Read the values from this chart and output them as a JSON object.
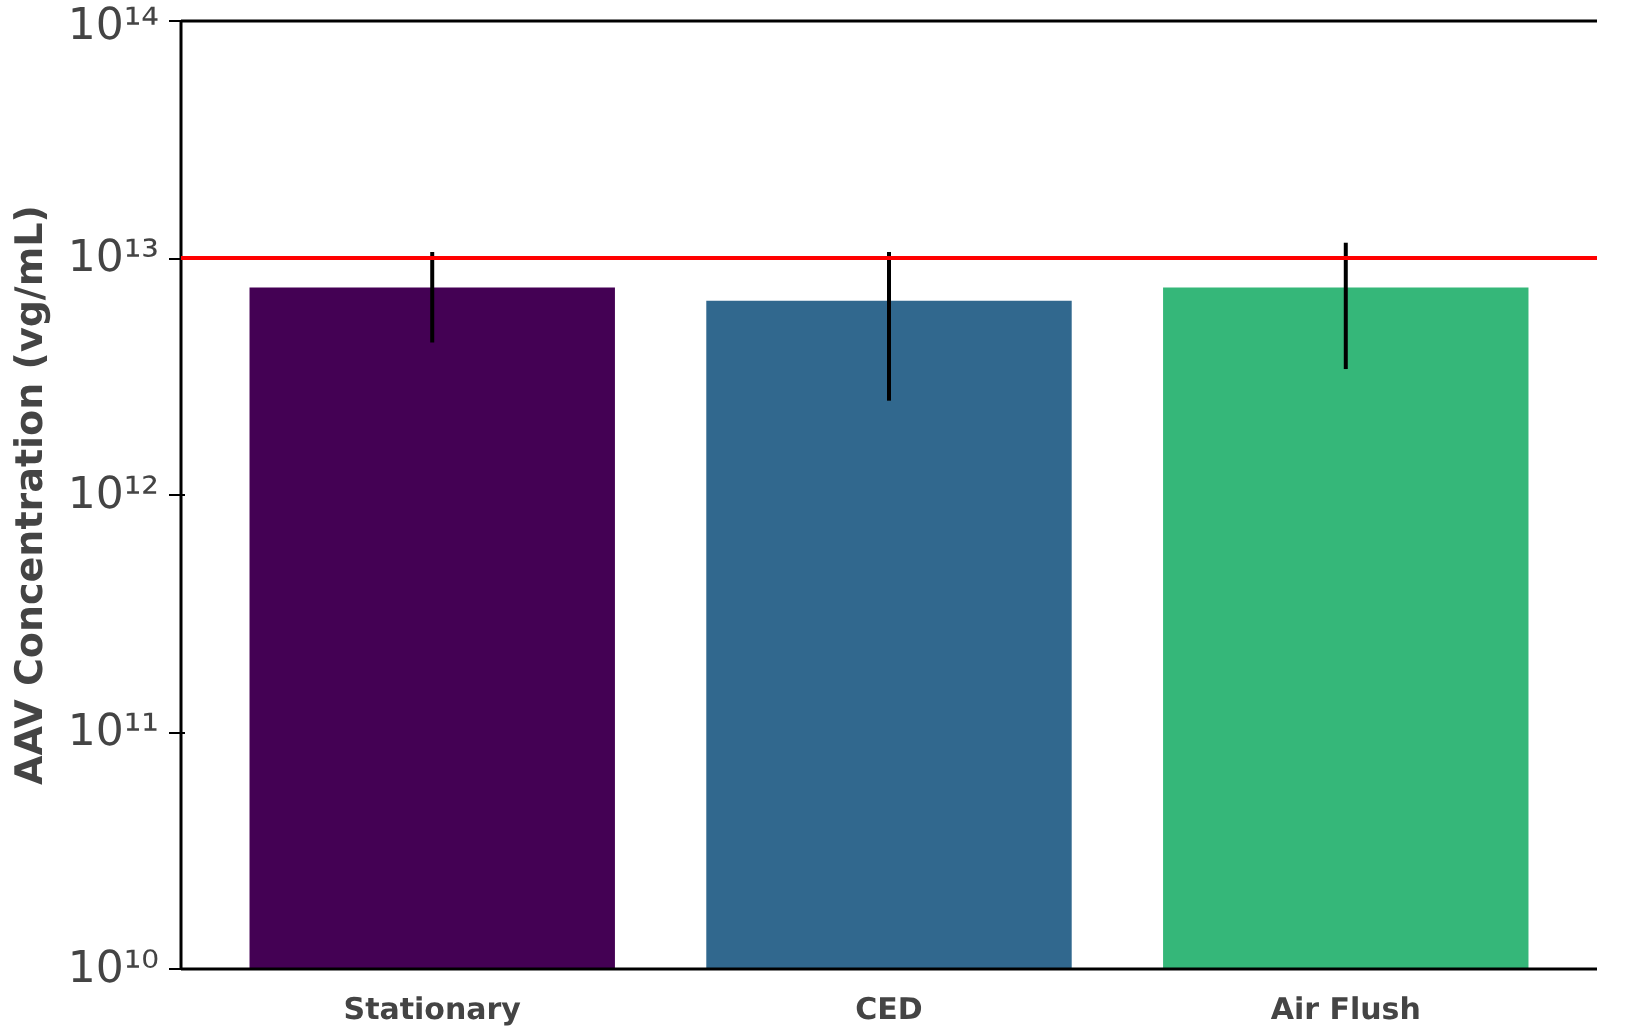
{
  "chart_data": {
    "type": "bar",
    "ylabel": "AAV Concentration (vg/mL)",
    "categories": [
      "Stationary",
      "CED",
      "Air Flush"
    ],
    "values": [
      7500000000000.0,
      6600000000000.0,
      7500000000000.0
    ],
    "colors": [
      "#440154",
      "#31688e",
      "#35b779"
    ],
    "errors": [
      [
        4400000000000.0,
        10600000000000.0
      ],
      [
        2500000000000.0,
        10600000000000.0
      ],
      [
        3400000000000.0,
        11600000000000.0
      ]
    ],
    "log": true,
    "ylim": [
      10000000000.0,
      100000000000000.0
    ],
    "yticks": [
      {
        "value": 10000000000.0,
        "label": "10¹⁰"
      },
      {
        "value": 100000000000.0,
        "label": "10¹¹"
      },
      {
        "value": 1000000000000.0,
        "label": "10¹²"
      },
      {
        "value": 10000000000000.0,
        "label": "10¹³"
      },
      {
        "value": 100000000000000.0,
        "label": "10¹⁴"
      }
    ],
    "ref_lines": [
      {
        "axis": "y",
        "value": 10000000000000.0,
        "label": null,
        "color": "#ff0000"
      }
    ],
    "grid": false
  }
}
